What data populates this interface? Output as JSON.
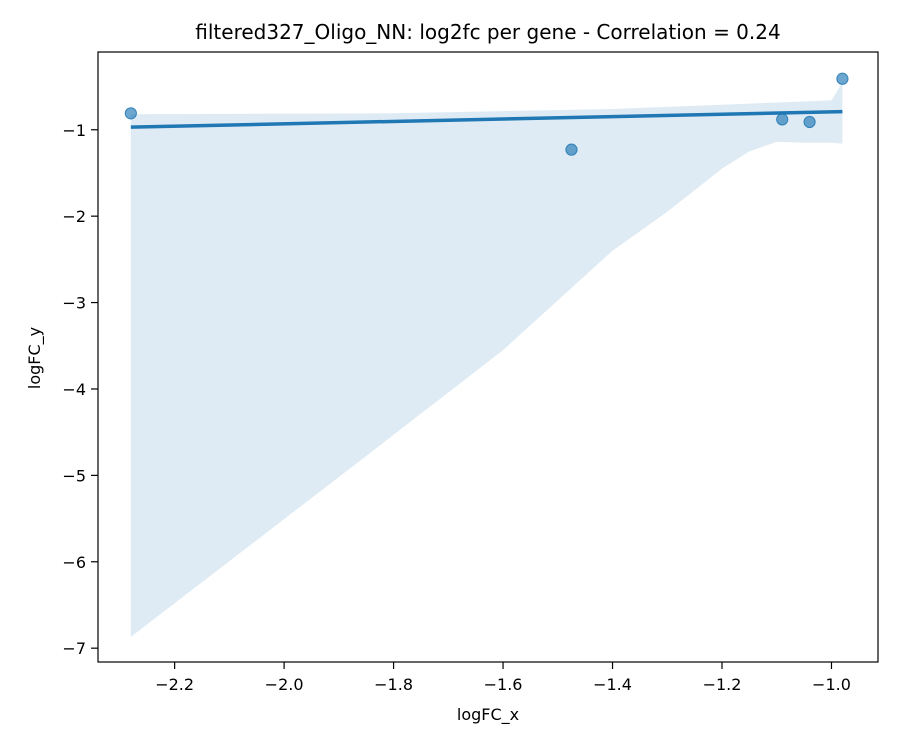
{
  "chart_data": {
    "type": "scatter",
    "title": "filtered327_Oligo_NN: log2fc per gene - Correlation = 0.24",
    "xlabel": "logFC_x",
    "ylabel": "logFC_y",
    "xlim": [
      -2.34,
      -0.915
    ],
    "ylim": [
      -7.16,
      -0.1
    ],
    "xticks": [
      -2.2,
      -2.0,
      -1.8,
      -1.6,
      -1.4,
      -1.2,
      -1.0
    ],
    "yticks": [
      -7,
      -6,
      -5,
      -4,
      -3,
      -2,
      -1
    ],
    "x_tick_labels": [
      "−2.2",
      "−2.0",
      "−1.8",
      "−1.6",
      "−1.4",
      "−1.2",
      "−1.0"
    ],
    "y_tick_labels": [
      "−7",
      "−6",
      "−5",
      "−4",
      "−3",
      "−2",
      "−1"
    ],
    "grid": false,
    "series": [
      {
        "points": [
          {
            "x": -2.28,
            "y": -0.81
          },
          {
            "x": -1.475,
            "y": -1.23
          },
          {
            "x": -1.09,
            "y": -0.88
          },
          {
            "x": -1.04,
            "y": -0.91
          },
          {
            "x": -0.98,
            "y": -0.41
          }
        ]
      }
    ],
    "regression_line": {
      "x": [
        -2.28,
        -0.98
      ],
      "y": [
        -0.97,
        -0.79
      ]
    },
    "confidence_band": {
      "upper": [
        {
          "x": -2.28,
          "y": -0.82
        },
        {
          "x": -1.8,
          "y": -0.81
        },
        {
          "x": -1.4,
          "y": -0.76
        },
        {
          "x": -1.2,
          "y": -0.71
        },
        {
          "x": -1.0,
          "y": -0.66
        },
        {
          "x": -0.98,
          "y": -0.45
        }
      ],
      "lower": [
        {
          "x": -2.28,
          "y": -6.87
        },
        {
          "x": -1.9,
          "y": -5.02
        },
        {
          "x": -1.6,
          "y": -3.55
        },
        {
          "x": -1.4,
          "y": -2.4
        },
        {
          "x": -1.3,
          "y": -1.95
        },
        {
          "x": -1.2,
          "y": -1.45
        },
        {
          "x": -1.15,
          "y": -1.25
        },
        {
          "x": -1.1,
          "y": -1.14
        },
        {
          "x": -1.05,
          "y": -1.15
        },
        {
          "x": -1.0,
          "y": -1.15
        },
        {
          "x": -0.98,
          "y": -1.16
        }
      ]
    },
    "colors": {
      "line": "#1f77b4",
      "points": "#1f77b4",
      "band": "#1f77b4"
    }
  }
}
